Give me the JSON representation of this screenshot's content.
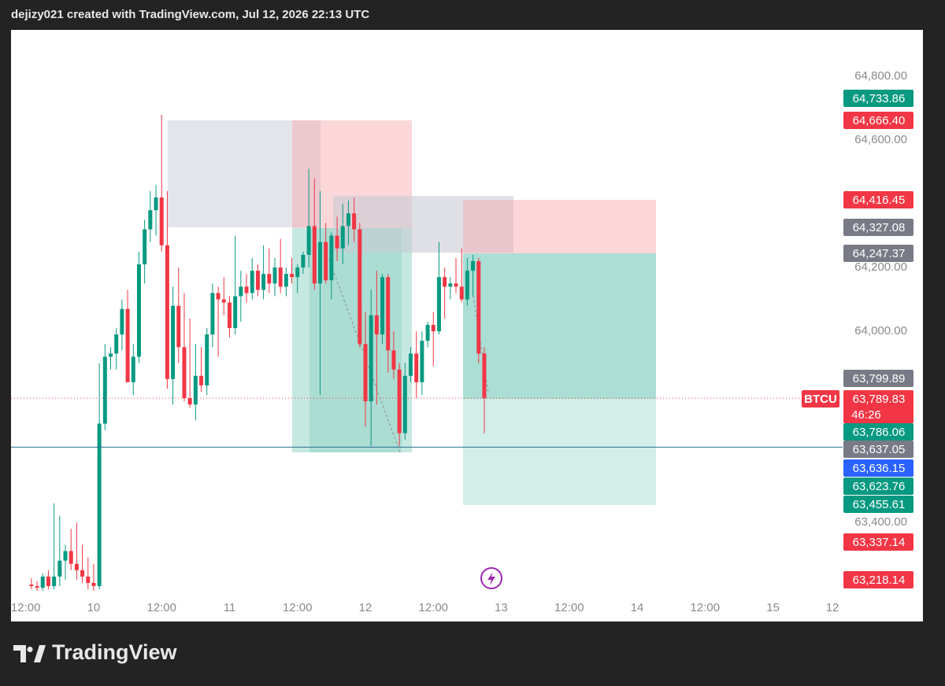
{
  "header": "dejizy021 created with TradingView.com, Jul 12, 2026 22:13 UTC",
  "brand": "TradingView",
  "chart_data": {
    "type": "candlestick",
    "symbol": "BTCU",
    "countdown": "46:26",
    "up_color": "#089981",
    "down_color": "#f23645",
    "x": [
      -11,
      -10,
      -9,
      -8,
      -7,
      -6,
      -5,
      -4,
      -3,
      -2,
      -1,
      0,
      1,
      2,
      3,
      4,
      5,
      6,
      7,
      8,
      9,
      10,
      11,
      12,
      13,
      14,
      15,
      16,
      17,
      18,
      19,
      20,
      21,
      22,
      23,
      24,
      25,
      26,
      27,
      28,
      29,
      30,
      31,
      32,
      33,
      34,
      35,
      36,
      37,
      38,
      39,
      40,
      41,
      42,
      43,
      44,
      45,
      46,
      47,
      48,
      49,
      50,
      51,
      52,
      53,
      54,
      55,
      56,
      57,
      58,
      59,
      60,
      61,
      62,
      63,
      64,
      65,
      66,
      67,
      68,
      69
    ],
    "open": [
      63205,
      63200,
      63195,
      63230,
      63200,
      63230,
      63280,
      63310,
      63270,
      63250,
      63230,
      63210,
      63200,
      63710,
      63920,
      63930,
      63990,
      64070,
      63840,
      63920,
      64210,
      64320,
      64380,
      64420,
      64270,
      63850,
      64080,
      63950,
      63790,
      63770,
      63860,
      63830,
      63990,
      64120,
      64100,
      64090,
      64010,
      64110,
      64140,
      64120,
      64190,
      64130,
      64180,
      64150,
      64200,
      64140,
      64180,
      64170,
      64200,
      64240,
      64330,
      64150,
      64280,
      64160,
      64300,
      64260,
      64330,
      64370,
      64320,
      63960,
      63780,
      64050,
      63990,
      64170,
      63940,
      63880,
      63680,
      63860,
      63930,
      63840,
      63970,
      64020,
      64000,
      64170,
      64140,
      64150,
      64140,
      64100,
      64190,
      64220,
      63930
    ],
    "high": [
      63225,
      63215,
      63240,
      63250,
      63460,
      63420,
      63330,
      63380,
      63400,
      63330,
      63290,
      63270,
      63900,
      63960,
      63950,
      64010,
      64100,
      64130,
      63960,
      64250,
      64350,
      64440,
      64460,
      64680,
      64440,
      64140,
      64200,
      64120,
      64040,
      63960,
      63950,
      64010,
      64150,
      64140,
      64170,
      64110,
      64300,
      64190,
      64180,
      64230,
      64210,
      64270,
      64260,
      64230,
      64290,
      64200,
      64230,
      64210,
      64250,
      64510,
      64480,
      64440,
      64340,
      64310,
      64360,
      64400,
      64410,
      64420,
      64340,
      64060,
      64130,
      64190,
      64180,
      64180,
      64000,
      63900,
      63900,
      63950,
      64000,
      64000,
      64030,
      64060,
      64280,
      64200,
      64170,
      64230,
      64260,
      64230,
      64240,
      64230,
      63950
    ],
    "low": [
      63190,
      63185,
      63185,
      63190,
      63190,
      63200,
      63220,
      63250,
      63220,
      63210,
      63190,
      63185,
      63190,
      63690,
      63880,
      63880,
      63940,
      63850,
      63800,
      63900,
      64150,
      64280,
      64300,
      64250,
      63820,
      63770,
      63900,
      63780,
      63760,
      63720,
      63810,
      63800,
      63950,
      63920,
      64050,
      63980,
      63990,
      64030,
      64090,
      64100,
      64110,
      64100,
      64120,
      64110,
      64120,
      64110,
      64150,
      64120,
      64180,
      64200,
      64130,
      63800,
      64150,
      64100,
      64220,
      64210,
      64270,
      64280,
      63950,
      63700,
      63640,
      63770,
      63960,
      63870,
      63850,
      63640,
      63660,
      63840,
      63790,
      63800,
      63950,
      63890,
      63990,
      64040,
      64100,
      64120,
      64090,
      64080,
      64110,
      63900,
      63680
    ],
    "close": [
      63200,
      63195,
      63230,
      63200,
      63230,
      63280,
      63310,
      63270,
      63250,
      63230,
      63210,
      63200,
      63710,
      63920,
      63930,
      63990,
      64070,
      63840,
      63920,
      64210,
      64320,
      64380,
      64420,
      64270,
      63850,
      64080,
      63950,
      63790,
      63770,
      63860,
      63830,
      63990,
      64120,
      64100,
      64090,
      64010,
      64110,
      64140,
      64120,
      64190,
      64130,
      64180,
      64150,
      64200,
      64140,
      64180,
      64170,
      64200,
      64240,
      64330,
      64150,
      64280,
      64160,
      64300,
      64260,
      64330,
      64370,
      64320,
      63960,
      63780,
      64050,
      63990,
      64170,
      63940,
      63880,
      63680,
      63860,
      63930,
      63840,
      63970,
      64020,
      64000,
      64170,
      64140,
      64150,
      64140,
      64100,
      64190,
      64220,
      63930,
      63790
    ],
    "xlim": [
      -14.6,
      132.3
    ],
    "xticks": [
      {
        "value": -12,
        "label": "12:00"
      },
      {
        "value": 0,
        "label": "10"
      },
      {
        "value": 12,
        "label": "12:00"
      },
      {
        "value": 24,
        "label": "11"
      },
      {
        "value": 36,
        "label": "12:00"
      },
      {
        "value": 48,
        "label": "12"
      },
      {
        "value": 60,
        "label": "12:00"
      },
      {
        "value": 72,
        "label": "13"
      },
      {
        "value": 84,
        "label": "12:00"
      },
      {
        "value": 96,
        "label": "14"
      },
      {
        "value": 108,
        "label": "12:00"
      },
      {
        "value": 120,
        "label": "15"
      },
      {
        "value": 130.5,
        "label": "12"
      }
    ],
    "ylim": [
      63163,
      64946
    ],
    "yticks": [
      {
        "value": 64800,
        "label": "64,800.00"
      },
      {
        "value": 64600,
        "label": "64,600.00"
      },
      {
        "value": 64200,
        "label": "64,200.00"
      },
      {
        "value": 64000,
        "label": "64,000.00"
      },
      {
        "value": 63400,
        "label": "63,400.00"
      }
    ],
    "price_labels": [
      {
        "value": 64733.86,
        "label": "64,733.86",
        "color": "#089981"
      },
      {
        "value": 64666.4,
        "label": "64,666.40",
        "color": "#f23645"
      },
      {
        "value": 64416.45,
        "label": "64,416.45",
        "color": "#f23645"
      },
      {
        "value": 64327.08,
        "label": "64,327.08",
        "color": "#787b86"
      },
      {
        "value": 64247.37,
        "label": "64,247.37",
        "color": "#787b86"
      },
      {
        "value": 63799.89,
        "label": "63,799.89",
        "color": "#787b86"
      },
      {
        "value": 63789.83,
        "label": "63,789.83",
        "color": "#f23645"
      },
      {
        "value": 63786.06,
        "label": "63,786.06",
        "color": "#089981"
      },
      {
        "value": 63637.05,
        "label": "63,637.05",
        "color": "#787b86"
      },
      {
        "value": 63636.15,
        "label": "63,636.15",
        "color": "#2962ff"
      },
      {
        "value": 63623.76,
        "label": "63,623.76",
        "color": "#089981"
      },
      {
        "value": 63455.61,
        "label": "63,455.61",
        "color": "#089981"
      },
      {
        "value": 63337.14,
        "label": "63,337.14",
        "color": "#f23645"
      },
      {
        "value": 63218.14,
        "label": "63,218.14",
        "color": "#f23645"
      }
    ]
  }
}
